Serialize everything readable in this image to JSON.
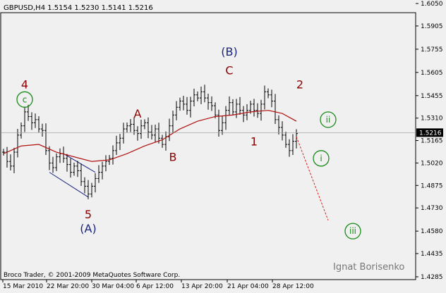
{
  "header": {
    "symbol_line": "GBPUSD,H4  1.5154 1.5230 1.5141 1.5216"
  },
  "footer": {
    "copyright": "Broco Trader, © 2001-2009 MetaQuotes Software Corp.",
    "author": "Ignat Borisenko"
  },
  "current_price": {
    "label": "1.5216",
    "value": 1.5216
  },
  "colors": {
    "background": "#f0f0f0",
    "price_bars": "#000000",
    "moving_average": "#b01010",
    "wave_red": "#8b0000",
    "wave_blue": "#1a237e",
    "wave_green": "#1a8a1a",
    "channel": "#1a237e",
    "projection": "#e02020"
  },
  "chart_data": {
    "type": "line",
    "title": "GBPUSD,H4",
    "ohlc_last": {
      "open": 1.5154,
      "high": 1.523,
      "low": 1.5141,
      "close": 1.5216
    },
    "ylim": [
      1.4285,
      1.605
    ],
    "y_ticks": [
      "1.6050",
      "1.5905",
      "1.5755",
      "1.5605",
      "1.5455",
      "1.5310",
      "1.5165",
      "1.5020",
      "1.4875",
      "1.4730",
      "1.4580",
      "1.4435",
      "1.4285"
    ],
    "x_ticks": [
      "15 Mar 2010",
      "22 Mar 20:00",
      "30 Mar 04:00",
      "6 Apr 12:00",
      "13 Apr 20:00",
      "21 Apr 04:00",
      "28 Apr 12:00"
    ],
    "price_path": [
      [
        0,
        1.509
      ],
      [
        1,
        1.503
      ],
      [
        2,
        1.5
      ],
      [
        3,
        1.509
      ],
      [
        4,
        1.52
      ],
      [
        5,
        1.526
      ],
      [
        6,
        1.535
      ],
      [
        7,
        1.532
      ],
      [
        8,
        1.528
      ],
      [
        9,
        1.53
      ],
      [
        10,
        1.524
      ],
      [
        11,
        1.523
      ],
      [
        12,
        1.51
      ],
      [
        13,
        1.502
      ],
      [
        14,
        1.499
      ],
      [
        15,
        1.506
      ],
      [
        16,
        1.508
      ],
      [
        17,
        1.505
      ],
      [
        18,
        1.501
      ],
      [
        19,
        1.496
      ],
      [
        20,
        1.5
      ],
      [
        21,
        1.497
      ],
      [
        22,
        1.49
      ],
      [
        23,
        1.487
      ],
      [
        24,
        1.482
      ],
      [
        25,
        1.487
      ],
      [
        26,
        1.492
      ],
      [
        27,
        1.496
      ],
      [
        28,
        1.5
      ],
      [
        29,
        1.503
      ],
      [
        30,
        1.505
      ],
      [
        31,
        1.51
      ],
      [
        32,
        1.515
      ],
      [
        33,
        1.518
      ],
      [
        34,
        1.524
      ],
      [
        35,
        1.526
      ],
      [
        36,
        1.527
      ],
      [
        37,
        1.523
      ],
      [
        38,
        1.521
      ],
      [
        39,
        1.526
      ],
      [
        40,
        1.528
      ],
      [
        41,
        1.522
      ],
      [
        42,
        1.52
      ],
      [
        43,
        1.524
      ],
      [
        44,
        1.518
      ],
      [
        45,
        1.514
      ],
      [
        46,
        1.519
      ],
      [
        47,
        1.526
      ],
      [
        48,
        1.533
      ],
      [
        49,
        1.538
      ],
      [
        50,
        1.542
      ],
      [
        51,
        1.54
      ],
      [
        52,
        1.536
      ],
      [
        53,
        1.542
      ],
      [
        54,
        1.546
      ],
      [
        55,
        1.544
      ],
      [
        56,
        1.548
      ],
      [
        57,
        1.544
      ],
      [
        58,
        1.541
      ],
      [
        59,
        1.539
      ],
      [
        60,
        1.533
      ],
      [
        61,
        1.523
      ],
      [
        62,
        1.528
      ],
      [
        63,
        1.536
      ],
      [
        64,
        1.541
      ],
      [
        65,
        1.535
      ],
      [
        66,
        1.54
      ],
      [
        67,
        1.536
      ],
      [
        68,
        1.533
      ],
      [
        69,
        1.536
      ],
      [
        70,
        1.54
      ],
      [
        71,
        1.536
      ],
      [
        72,
        1.534
      ],
      [
        73,
        1.54
      ],
      [
        74,
        1.548
      ],
      [
        75,
        1.546
      ],
      [
        76,
        1.542
      ],
      [
        77,
        1.53
      ],
      [
        78,
        1.525
      ],
      [
        79,
        1.52
      ],
      [
        80,
        1.514
      ],
      [
        81,
        1.51
      ],
      [
        82,
        1.516
      ],
      [
        83,
        1.521
      ]
    ],
    "moving_average": [
      [
        0,
        1.508
      ],
      [
        5,
        1.513
      ],
      [
        10,
        1.514
      ],
      [
        15,
        1.509
      ],
      [
        20,
        1.506
      ],
      [
        25,
        1.503
      ],
      [
        30,
        1.504
      ],
      [
        35,
        1.508
      ],
      [
        40,
        1.513
      ],
      [
        45,
        1.517
      ],
      [
        50,
        1.524
      ],
      [
        55,
        1.529
      ],
      [
        60,
        1.532
      ],
      [
        65,
        1.533
      ],
      [
        70,
        1.535
      ],
      [
        75,
        1.536
      ],
      [
        79,
        1.534
      ],
      [
        83,
        1.529
      ]
    ],
    "channel_lines": [
      {
        "from": [
          13,
          1.496
        ],
        "to": [
          24,
          1.48
        ]
      },
      {
        "from": [
          17,
          1.508
        ],
        "to": [
          26,
          1.496
        ]
      }
    ],
    "projection": {
      "from": [
        83,
        1.519
      ],
      "to": [
        92,
        1.465
      ]
    },
    "wave_labels": [
      {
        "text": "4",
        "x": 6,
        "price": 1.553,
        "color_key": "wave_red",
        "circled": false
      },
      {
        "text": "c",
        "x": 6,
        "price": 1.543,
        "color_key": "wave_green",
        "circled": true
      },
      {
        "text": "5",
        "x": 24,
        "price": 1.469,
        "color_key": "wave_red",
        "circled": false
      },
      {
        "text": "(A)",
        "x": 24,
        "price": 1.46,
        "color_key": "wave_blue",
        "circled": false
      },
      {
        "text": "A",
        "x": 38,
        "price": 1.534,
        "color_key": "wave_red",
        "circled": false
      },
      {
        "text": "B",
        "x": 48,
        "price": 1.506,
        "color_key": "wave_red",
        "circled": false
      },
      {
        "text": "(B)",
        "x": 64,
        "price": 1.574,
        "color_key": "wave_blue",
        "circled": false
      },
      {
        "text": "C",
        "x": 64,
        "price": 1.562,
        "color_key": "wave_red",
        "circled": false
      },
      {
        "text": "1",
        "x": 71,
        "price": 1.516,
        "color_key": "wave_red",
        "circled": false
      },
      {
        "text": "2",
        "x": 84,
        "price": 1.553,
        "color_key": "wave_red",
        "circled": false
      },
      {
        "text": "ii",
        "x": 92,
        "price": 1.53,
        "color_key": "wave_green",
        "circled": true
      },
      {
        "text": "i",
        "x": 90,
        "price": 1.505,
        "color_key": "wave_green",
        "circled": true
      },
      {
        "text": "iii",
        "x": 99,
        "price": 1.458,
        "color_key": "wave_green",
        "circled": true
      }
    ]
  }
}
